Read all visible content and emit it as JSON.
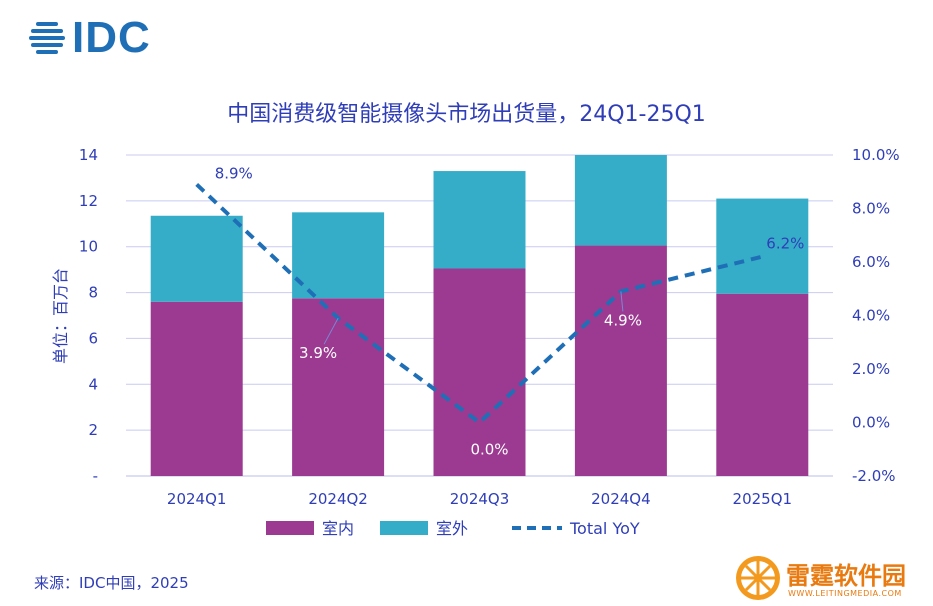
{
  "brand": {
    "logo_text": "IDC"
  },
  "chart_data": {
    "type": "bar",
    "title": "中国消费级智能摄像头市场出货量，24Q1-25Q1",
    "ylabel": "单位：百万台",
    "categories": [
      "2024Q1",
      "2024Q2",
      "2024Q3",
      "2024Q4",
      "2025Q1"
    ],
    "stacked": true,
    "series": [
      {
        "name": "室内",
        "values": [
          7.6,
          7.75,
          9.05,
          10.05,
          7.95
        ],
        "color": "#9b3a90"
      },
      {
        "name": "室外",
        "values": [
          3.75,
          3.75,
          4.25,
          3.95,
          4.15
        ],
        "color": "#36adc8"
      }
    ],
    "line_series": {
      "name": "Total YoY",
      "values": [
        8.9,
        3.9,
        0.0,
        4.9,
        6.2
      ],
      "labels": [
        "8.9%",
        "3.9%",
        "0.0%",
        "4.9%",
        "6.2%"
      ],
      "color": "#1f6fb7"
    },
    "ylim": [
      0,
      14
    ],
    "y_ticks": [
      "-",
      "2",
      "4",
      "6",
      "8",
      "10",
      "12",
      "14"
    ],
    "y2lim": [
      -2,
      10
    ],
    "y2_ticks": [
      "-2.0%",
      "0.0%",
      "2.0%",
      "4.0%",
      "6.0%",
      "8.0%",
      "10.0%"
    ],
    "grid": true,
    "legend_position": "bottom"
  },
  "source": "来源：IDC中国，2025",
  "watermark": {
    "text": "雷霆软件园",
    "url": "WWW.LEITINGMEDIA.COM"
  }
}
